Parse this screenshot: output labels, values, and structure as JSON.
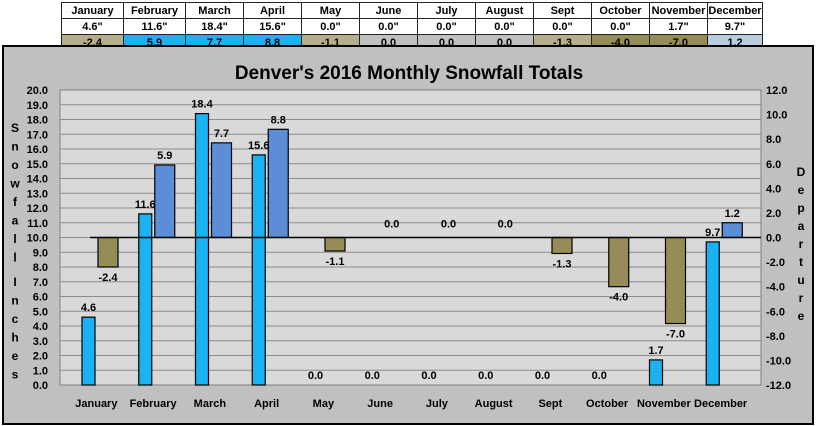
{
  "table": {
    "months": [
      "January",
      "February",
      "March",
      "April",
      "May",
      "June",
      "July",
      "August",
      "Sept",
      "October",
      "November",
      "December"
    ],
    "snowfall_text": [
      "4.6\"",
      "11.6\"",
      "18.4\"",
      "15.6\"",
      "0.0\"",
      "0.0\"",
      "0.0\"",
      "0.0\"",
      "0.0\"",
      "0.0\"",
      "1.7\"",
      "9.7\""
    ],
    "departure_text": [
      "-2.4",
      "5.9",
      "7.7",
      "8.8",
      "-1.1",
      "0.0",
      "0.0",
      "0.0",
      "-1.3",
      "-4.0",
      "-7.0",
      "1.2"
    ]
  },
  "colors": {
    "snow_bar": "#1ab2f0",
    "departure_positive": "#5b8ed6",
    "departure_negative": "#958c57",
    "plot_background": "#d9d9d9",
    "frame_background": "#c0c0c0",
    "table_positive_fill": "#1ab2f0",
    "table_negative_fill": "#b5ae8c",
    "table_zero_fill": "#c0c0c0",
    "table_december_fill": "#b7cde0",
    "table_october_fill": "#958c57",
    "table_november_fill": "#958c57"
  },
  "chart_data": {
    "type": "bar",
    "title": "Denver's 2016 Monthly Snowfall Totals",
    "categories": [
      "January",
      "February",
      "March",
      "April",
      "May",
      "June",
      "July",
      "August",
      "Sept",
      "October",
      "November",
      "December"
    ],
    "series": [
      {
        "values": [
          4.6,
          11.6,
          18.4,
          15.6,
          0.0,
          0.0,
          0.0,
          0.0,
          0.0,
          0.0,
          1.7,
          9.7
        ],
        "axis": "left"
      },
      {
        "values": [
          -2.4,
          5.9,
          7.7,
          8.8,
          -1.1,
          0.0,
          0.0,
          0.0,
          -1.3,
          -4.0,
          -7.0,
          1.2
        ],
        "axis": "right"
      }
    ],
    "labels": {
      "snowfall": [
        "4.6",
        "11.6",
        "18.4",
        "15.6",
        "0.0",
        "0.0",
        "0.0",
        "0.0",
        "0.0",
        "0.0",
        "1.7",
        "9.7"
      ],
      "departure": [
        "-2.4",
        "5.9",
        "7.7",
        "8.8",
        "-1.1",
        "0.0",
        "0.0",
        "0.0",
        "-1.3",
        "-4.0",
        "-7.0",
        "1.2"
      ]
    },
    "ylabel_left": "Snowfall Inches",
    "ylabel_right": "Departure",
    "ylim_left": [
      0,
      20
    ],
    "ylim_right": [
      -12,
      12
    ],
    "yticks_left": [
      "0.0",
      "1.0",
      "2.0",
      "3.0",
      "4.0",
      "5.0",
      "6.0",
      "7.0",
      "8.0",
      "9.0",
      "10.0",
      "11.0",
      "12.0",
      "13.0",
      "14.0",
      "15.0",
      "16.0",
      "17.0",
      "18.0",
      "19.0",
      "20.0"
    ],
    "yticks_right": [
      "-12.0",
      "-10.0",
      "-8.0",
      "-6.0",
      "-4.0",
      "-2.0",
      "0.0",
      "2.0",
      "4.0",
      "6.0",
      "8.0",
      "10.0",
      "12.0"
    ],
    "grid": true,
    "legend": "none"
  }
}
